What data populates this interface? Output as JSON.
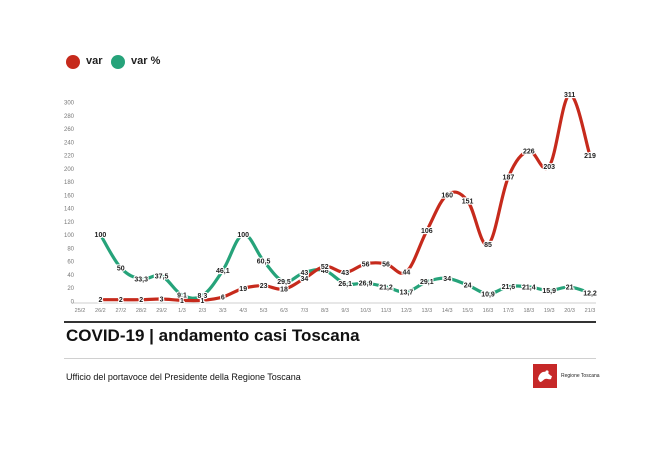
{
  "legend": {
    "items": [
      {
        "label": "var",
        "color": "#c62a1c"
      },
      {
        "label": "var %",
        "color": "#26a37a"
      }
    ]
  },
  "title": "COVID-19 | andamento casi Toscana",
  "subtitle": "Ufficio del portavoce del Presidente della Regione Toscana",
  "logo_text": "Regione Toscana",
  "chart_data": {
    "type": "line",
    "categories": [
      "25/2",
      "26/2",
      "27/2",
      "28/2",
      "29/2",
      "1/3",
      "2/3",
      "3/3",
      "4/3",
      "5/3",
      "6/3",
      "7/3",
      "8/3",
      "9/3",
      "10/3",
      "11/3",
      "12/3",
      "13/3",
      "14/3",
      "15/3",
      "16/3",
      "17/3",
      "18/3",
      "19/3",
      "20/3",
      "21/3"
    ],
    "ylim": [
      0,
      300
    ],
    "yticks": [
      0,
      20,
      40,
      60,
      80,
      100,
      120,
      140,
      160,
      180,
      200,
      220,
      240,
      260,
      280,
      300
    ],
    "series": [
      {
        "name": "var",
        "color": "#c62a1c",
        "values": [
          null,
          2,
          2,
          2,
          3,
          1,
          1,
          6,
          19,
          23,
          18,
          34,
          52,
          43,
          56,
          56,
          44,
          106,
          160,
          151,
          85,
          187,
          226,
          203,
          311,
          219
        ],
        "labels": [
          "",
          "2",
          "2",
          "2",
          "3",
          "1",
          "1",
          "6",
          "19",
          "23",
          "18",
          "34",
          "52",
          "43",
          "56",
          "56",
          "44",
          "106",
          "160",
          "151",
          "85",
          "187",
          "226",
          "203",
          "311",
          "219"
        ]
      },
      {
        "name": "var %",
        "color": "#26a37a",
        "values": [
          null,
          100,
          50,
          33.3,
          37.5,
          9.1,
          8.3,
          46.1,
          100,
          60.5,
          29.5,
          43,
          46,
          26.1,
          26.9,
          21.2,
          13.7,
          29.1,
          34,
          24,
          10.9,
          21.6,
          21.4,
          15.9,
          21,
          12.2
        ],
        "labels": [
          "",
          "100",
          "50",
          "33,3",
          "37,5",
          "9,1",
          "8,3",
          "46,1",
          "100",
          "60,5",
          "29,5",
          "43",
          "46",
          "26,1",
          "26,9",
          "21,2",
          "13,7",
          "29,1",
          "34",
          "24",
          "10,9",
          "21,6",
          "21,4",
          "15,9",
          "21",
          "12,2"
        ]
      }
    ]
  }
}
